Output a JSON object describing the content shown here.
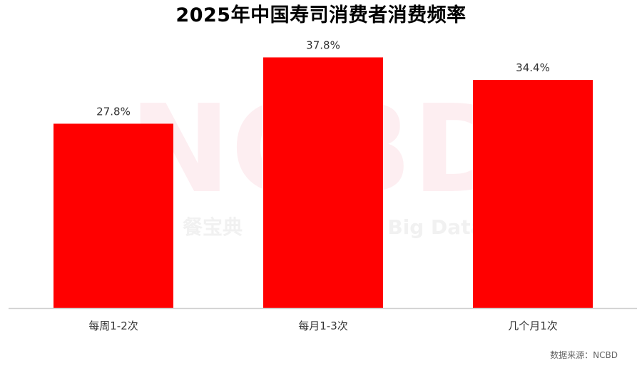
{
  "chart_data": {
    "type": "bar",
    "title": "2025年中国寿司消费者消费频率",
    "categories": [
      "每周1-2次",
      "每月1-3次",
      "几个月1次"
    ],
    "values": [
      27.8,
      37.8,
      34.4
    ],
    "value_labels": [
      "27.8%",
      "37.8%",
      "34.4%"
    ],
    "value_unit": "%",
    "xlabel": "",
    "ylabel": "",
    "ylim": [
      0,
      40
    ],
    "grid": false,
    "legend": "none",
    "bar_color": "#ff0000"
  },
  "watermark": {
    "logo_text": "NCBD",
    "brand_text": "餐宝典",
    "tagline": "g Big Data"
  },
  "source_note": "数据来源：NCBD"
}
